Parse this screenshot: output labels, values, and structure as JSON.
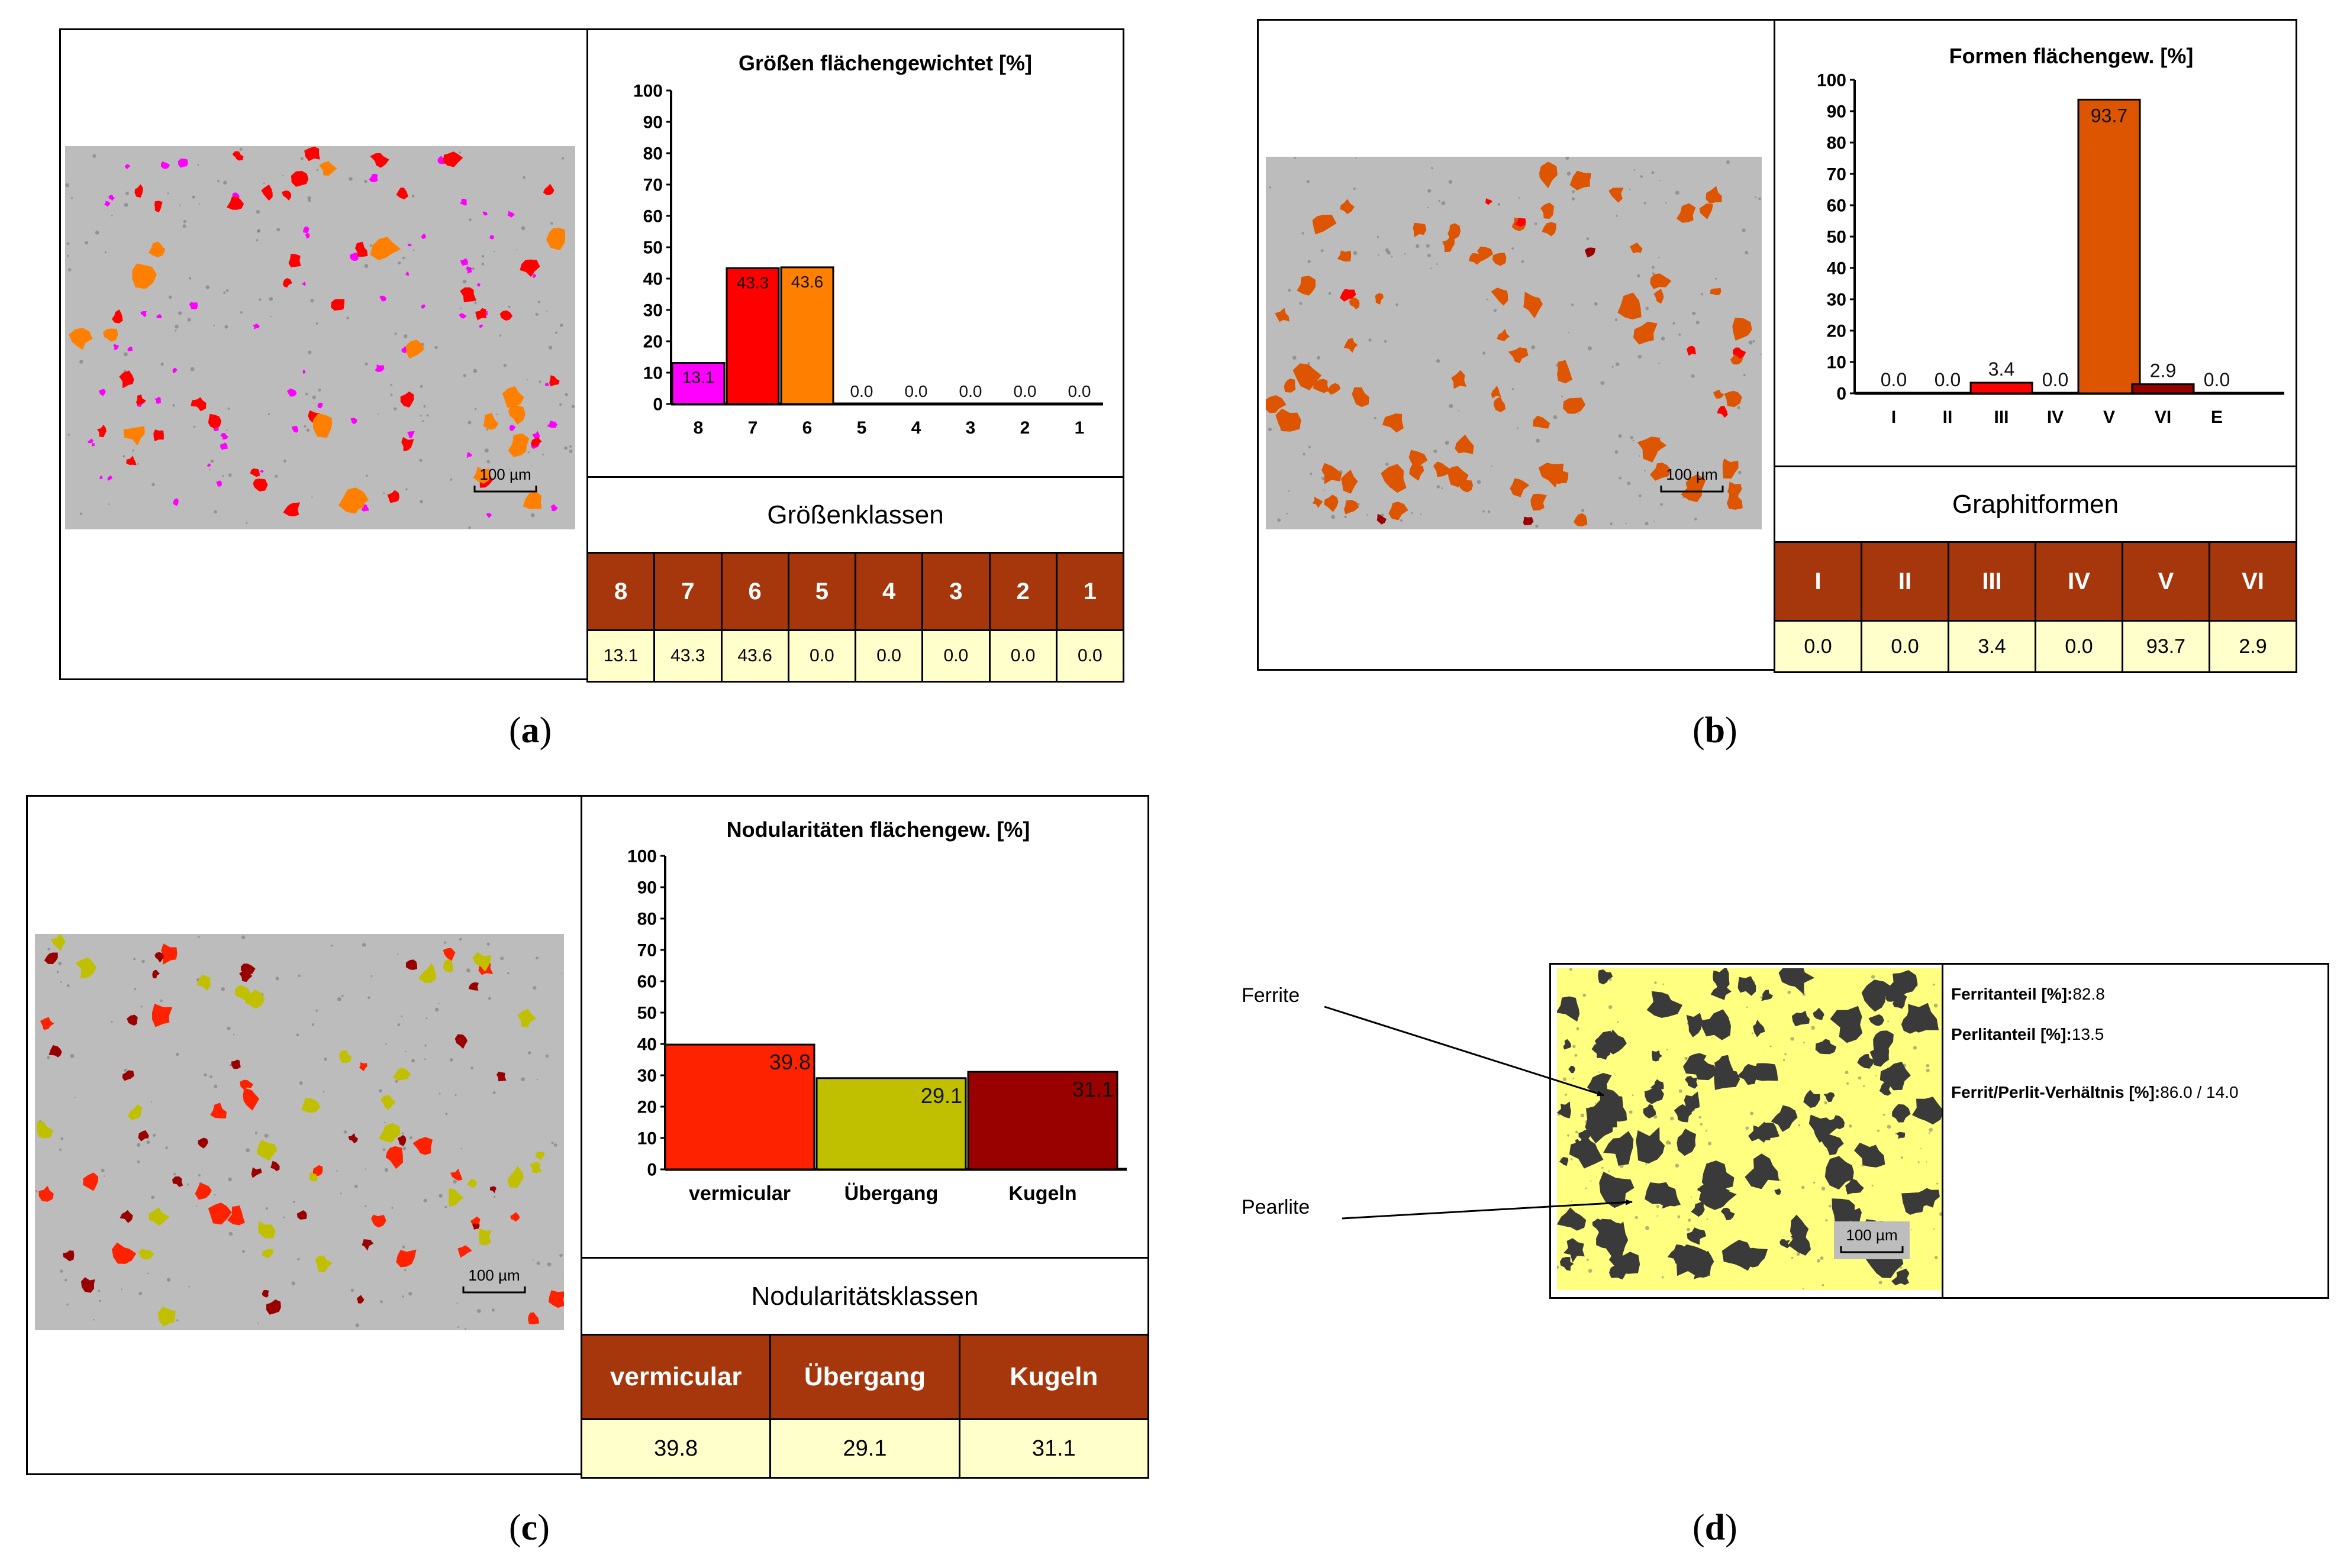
{
  "panel_a": {
    "label": "a",
    "scale_bar": "100 µm",
    "class_row_label": "Größenklassen",
    "table": {
      "headers": [
        "8",
        "7",
        "6",
        "5",
        "4",
        "3",
        "2",
        "1"
      ],
      "values": [
        "13.1",
        "43.3",
        "43.6",
        "0.0",
        "0.0",
        "0.0",
        "0.0",
        "0.0"
      ]
    },
    "colors": {
      "pink": "#ff00ff",
      "red": "#ff0000",
      "orange": "#ff8000"
    }
  },
  "panel_b": {
    "label": "b",
    "scale_bar": "100 µm",
    "class_row_label": "Graphitformen",
    "table": {
      "headers": [
        "I",
        "II",
        "III",
        "IV",
        "V",
        "VI"
      ],
      "values": [
        "0.0",
        "0.0",
        "3.4",
        "0.0",
        "93.7",
        "2.9"
      ]
    },
    "colors": {
      "red": "#ff0000",
      "orange": "#dd5500",
      "darkred": "#990000"
    }
  },
  "panel_c": {
    "label": "c",
    "scale_bar": "100 µm",
    "class_row_label": "Nodularitätsklassen",
    "table": {
      "headers": [
        "vermicular",
        "Übergang",
        "Kugeln"
      ],
      "values": [
        "39.8",
        "29.1",
        "31.1"
      ]
    },
    "colors": {
      "red": "#ff2200",
      "yellow": "#c0c000",
      "darkred": "#990000"
    }
  },
  "panel_d": {
    "label": "d",
    "scale_bar": "100 µm",
    "ferrite_label": "Ferrite",
    "pearlite_label": "Pearlite",
    "ferrit_label": "Ferritanteil [%]:",
    "ferrit_value": "82.8",
    "perlit_label": "Perlitanteil [%]:",
    "perlit_value": "13.5",
    "ratio_label": "Ferrit/Perlit-Verhältnis [%]:",
    "ratio_value": "86.0 / 14.0",
    "colors": {
      "ferrite": "#ffff80",
      "pearlite": "#3a3a3a"
    }
  },
  "chart_data": [
    {
      "type": "bar",
      "title": "Größen flächengewichtet [%]",
      "categories": [
        "8",
        "7",
        "6",
        "5",
        "4",
        "3",
        "2",
        "1"
      ],
      "values": [
        13.1,
        43.3,
        43.6,
        0.0,
        0.0,
        0.0,
        0.0,
        0.0
      ],
      "labels": [
        "13.1",
        "43.3",
        "43.6",
        "0.0",
        "0.0",
        "0.0",
        "0.0",
        "0.0"
      ],
      "colors": [
        "#ff00ff",
        "#ff0000",
        "#ff8000",
        "#ff8000",
        "#ff8000",
        "#ff8000",
        "#ff8000",
        "#ff8000"
      ],
      "ylim": [
        0,
        100
      ],
      "yticks": [
        "0",
        "10",
        "20",
        "30",
        "40",
        "50",
        "60",
        "70",
        "80",
        "90",
        "100"
      ],
      "xlabel": "Größenklassen",
      "ylabel": ""
    },
    {
      "type": "bar",
      "title": "Formen flächengew. [%]",
      "categories": [
        "I",
        "II",
        "III",
        "IV",
        "V",
        "VI",
        "E"
      ],
      "values": [
        0.0,
        0.0,
        3.4,
        0.0,
        93.7,
        2.9,
        0.0
      ],
      "labels": [
        "0.0",
        "0.0",
        "3.4",
        "0.0",
        "93.7",
        "2.9",
        "0.0"
      ],
      "colors": [
        "#ff0000",
        "#ff0000",
        "#ff0000",
        "#dd5500",
        "#dd5500",
        "#990000",
        "#990000"
      ],
      "ylim": [
        0,
        100
      ],
      "yticks": [
        "0",
        "10",
        "20",
        "30",
        "40",
        "50",
        "60",
        "70",
        "80",
        "90",
        "100"
      ],
      "xlabel": "Graphitformen",
      "ylabel": ""
    },
    {
      "type": "bar",
      "title": "Nodularitäten flächengew. [%]",
      "categories": [
        "vermicular",
        "Übergang",
        "Kugeln"
      ],
      "values": [
        39.8,
        29.1,
        31.1
      ],
      "labels": [
        "39.8",
        "29.1",
        "31.1"
      ],
      "colors": [
        "#ff2200",
        "#c0c000",
        "#990000"
      ],
      "ylim": [
        0,
        100
      ],
      "yticks": [
        "0",
        "10",
        "20",
        "30",
        "40",
        "50",
        "60",
        "70",
        "80",
        "90",
        "100"
      ],
      "xlabel": "Nodularitätsklassen",
      "ylabel": ""
    }
  ]
}
